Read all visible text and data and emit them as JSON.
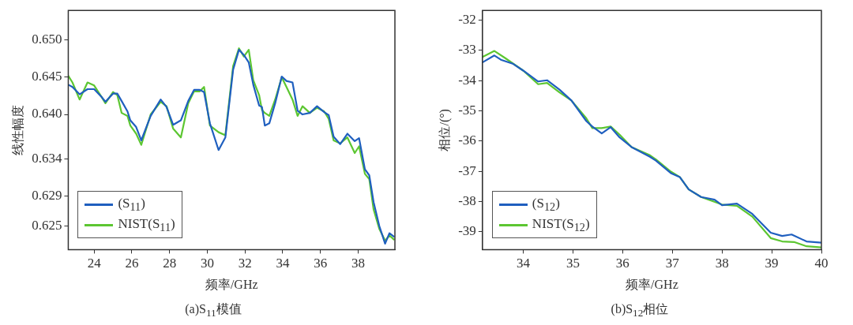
{
  "chart_data": [
    {
      "type": "line",
      "xlabel": "频率/GHz",
      "ylabel": "线性幅度",
      "annotations": [
        "(a)S$_{11}$模值"
      ],
      "xlim": [
        22.63,
        39.95
      ],
      "xticks": [
        24,
        26,
        28,
        30,
        32,
        34,
        36,
        38
      ],
      "ylim": [
        0.6218,
        0.654
      ],
      "yticks": [
        {
          "value": 0.625,
          "label": "0.625"
        },
        {
          "value": 0.629,
          "label": "0.629"
        },
        {
          "value": 0.634,
          "label": "0.634"
        },
        {
          "value": 0.64,
          "label": "0.640"
        },
        {
          "value": 0.645,
          "label": "0.645"
        },
        {
          "value": 0.65,
          "label": "0.650"
        }
      ],
      "grid": false,
      "legend": "bottom left",
      "marker": "none",
      "line_style": "solid",
      "x": [
        22.63,
        22.85,
        23.23,
        23.65,
        24.0,
        24.38,
        24.6,
        25.0,
        25.23,
        25.46,
        25.77,
        25.92,
        26.23,
        26.5,
        27.0,
        27.53,
        27.84,
        28.19,
        28.6,
        28.99,
        29.3,
        29.6,
        29.83,
        30.14,
        30.6,
        30.96,
        31.37,
        31.68,
        31.94,
        32.2,
        32.44,
        32.75,
        32.9,
        33.05,
        33.29,
        33.6,
        33.95,
        34.2,
        34.52,
        34.79,
        35.05,
        35.44,
        35.82,
        36.2,
        36.44,
        36.7,
        37.05,
        37.43,
        37.82,
        38.05,
        38.36,
        38.59,
        38.82,
        39.12,
        39.43,
        39.66,
        39.92
      ],
      "series": [
        {
          "name": "(S$_{11}$)",
          "color": "#1f5fbf",
          "values": [
            0.644,
            0.6437,
            0.6427,
            0.6434,
            0.6434,
            0.6424,
            0.6417,
            0.6428,
            0.6428,
            0.6418,
            0.6404,
            0.6392,
            0.6383,
            0.6365,
            0.6398,
            0.642,
            0.641,
            0.6386,
            0.6392,
            0.6418,
            0.6433,
            0.6433,
            0.643,
            0.6388,
            0.6352,
            0.6369,
            0.646,
            0.6487,
            0.648,
            0.647,
            0.644,
            0.6412,
            0.641,
            0.6385,
            0.6388,
            0.6415,
            0.6451,
            0.6445,
            0.6443,
            0.6405,
            0.64,
            0.6402,
            0.6411,
            0.6403,
            0.6399,
            0.637,
            0.636,
            0.6374,
            0.6364,
            0.6368,
            0.6326,
            0.6318,
            0.6282,
            0.625,
            0.6226,
            0.624,
            0.6235
          ]
        },
        {
          "name": "NIST(S$_{11}$)",
          "color": "#5cc631",
          "values": [
            0.6452,
            0.6443,
            0.642,
            0.6443,
            0.6439,
            0.6424,
            0.6415,
            0.643,
            0.6426,
            0.6402,
            0.6398,
            0.6385,
            0.6374,
            0.6359,
            0.64,
            0.6417,
            0.6411,
            0.6381,
            0.6369,
            0.6415,
            0.6431,
            0.6431,
            0.6437,
            0.6385,
            0.6376,
            0.6372,
            0.6465,
            0.6489,
            0.6478,
            0.6487,
            0.6446,
            0.6426,
            0.6406,
            0.6402,
            0.6398,
            0.642,
            0.645,
            0.6437,
            0.642,
            0.6398,
            0.6411,
            0.6402,
            0.6409,
            0.6404,
            0.6394,
            0.6365,
            0.6361,
            0.6369,
            0.6348,
            0.6357,
            0.632,
            0.6313,
            0.6272,
            0.6246,
            0.623,
            0.6237,
            0.6231
          ]
        }
      ]
    },
    {
      "type": "line",
      "xlabel": "频率/GHz",
      "ylabel": "相位/(°)",
      "annotations": [
        "(b)S$_{12}$相位"
      ],
      "xlim": [
        33.18,
        40
      ],
      "xticks": [
        34,
        35,
        36,
        37,
        38,
        39,
        40
      ],
      "ylim": [
        -39.59,
        -31.68
      ],
      "yticks": [
        -39,
        -38,
        -37,
        -36,
        -35,
        -34,
        -33,
        -32
      ],
      "grid": false,
      "legend": "bottom left",
      "marker": "none",
      "line_style": "solid",
      "series": [
        {
          "name": "(S$_{12}$)",
          "color": "#1f5fbf",
          "x": [
            33.18,
            33.42,
            33.55,
            33.8,
            34.0,
            34.3,
            34.48,
            34.73,
            34.97,
            35.27,
            35.39,
            35.58,
            35.76,
            35.94,
            36.18,
            36.55,
            36.67,
            36.97,
            37.15,
            37.33,
            37.58,
            37.85,
            38.0,
            38.3,
            38.61,
            38.98,
            39.21,
            39.4,
            39.7,
            40
          ],
          "values": [
            -33.4,
            -33.17,
            -33.31,
            -33.45,
            -33.67,
            -34.03,
            -33.99,
            -34.3,
            -34.66,
            -35.34,
            -35.52,
            -35.75,
            -35.54,
            -35.88,
            -36.2,
            -36.52,
            -36.65,
            -37.06,
            -37.19,
            -37.6,
            -37.85,
            -37.94,
            -38.12,
            -38.07,
            -38.41,
            -39.03,
            -39.14,
            -39.09,
            -39.32,
            -39.36
          ]
        },
        {
          "name": "NIST(S$_{12}$)",
          "color": "#5cc631",
          "x": [
            33.18,
            33.42,
            33.64,
            34.0,
            34.3,
            34.48,
            34.73,
            34.97,
            35.27,
            35.39,
            35.58,
            35.76,
            35.94,
            36.18,
            36.55,
            36.67,
            36.97,
            37.15,
            37.33,
            37.58,
            38.0,
            38.3,
            38.61,
            38.98,
            39.21,
            39.45,
            39.7,
            40
          ],
          "values": [
            -33.22,
            -33.02,
            -33.26,
            -33.67,
            -34.12,
            -34.08,
            -34.39,
            -34.66,
            -35.25,
            -35.57,
            -35.57,
            -35.52,
            -35.79,
            -36.2,
            -36.47,
            -36.61,
            -37.01,
            -37.19,
            -37.6,
            -37.85,
            -38.1,
            -38.14,
            -38.5,
            -39.21,
            -39.32,
            -39.34,
            -39.48,
            -39.52
          ]
        }
      ]
    }
  ]
}
